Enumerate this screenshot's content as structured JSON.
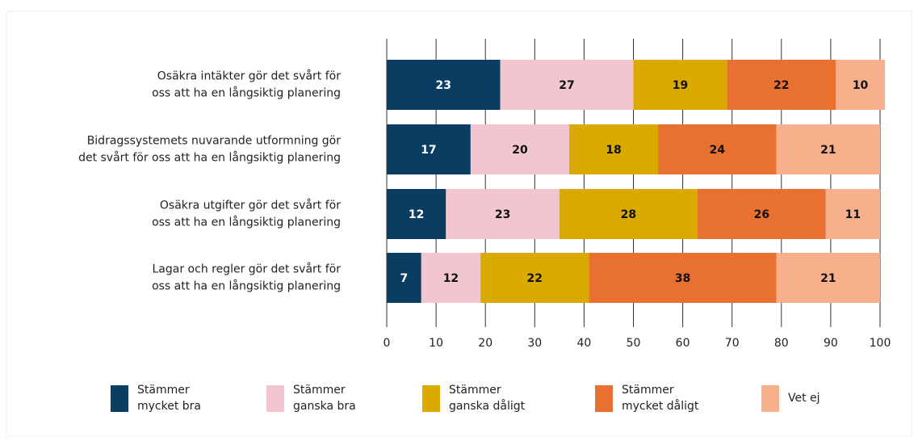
{
  "chart_data": {
    "type": "stacked_barh",
    "categories": [
      [
        "Osäkra intäkter gör det svårt för",
        "oss att ha en långsiktig planering"
      ],
      [
        "Bidragssystemets nuvarande utformning gör",
        "det svårt för oss att ha en långsiktig planering"
      ],
      [
        "Osäkra utgifter gör det svårt för",
        "oss att ha en långsiktig planering"
      ],
      [
        "Lagar och regler gör det svårt för",
        "oss att ha en långsiktig planering"
      ]
    ],
    "series": [
      {
        "name": [
          "Stämmer",
          "mycket bra"
        ],
        "color": "#0a3d62",
        "values": [
          23,
          17,
          12,
          7
        ]
      },
      {
        "name": [
          "Stämmer",
          "ganska bra"
        ],
        "color": "#f1c6cf",
        "values": [
          27,
          20,
          23,
          12
        ]
      },
      {
        "name": [
          "Stämmer",
          "ganska dåligt"
        ],
        "color": "#dbaa00",
        "values": [
          19,
          18,
          28,
          22
        ]
      },
      {
        "name": [
          "Stämmer",
          "mycket dåligt"
        ],
        "color": "#e87030",
        "values": [
          22,
          24,
          26,
          38
        ]
      },
      {
        "name": [
          "Vet ej"
        ],
        "color": "#f7b08b",
        "values": [
          10,
          21,
          11,
          21
        ]
      }
    ],
    "xlim": [
      0,
      100
    ],
    "xticks": [
      0,
      10,
      20,
      30,
      40,
      50,
      60,
      70,
      80,
      90,
      100
    ],
    "grid": true
  }
}
